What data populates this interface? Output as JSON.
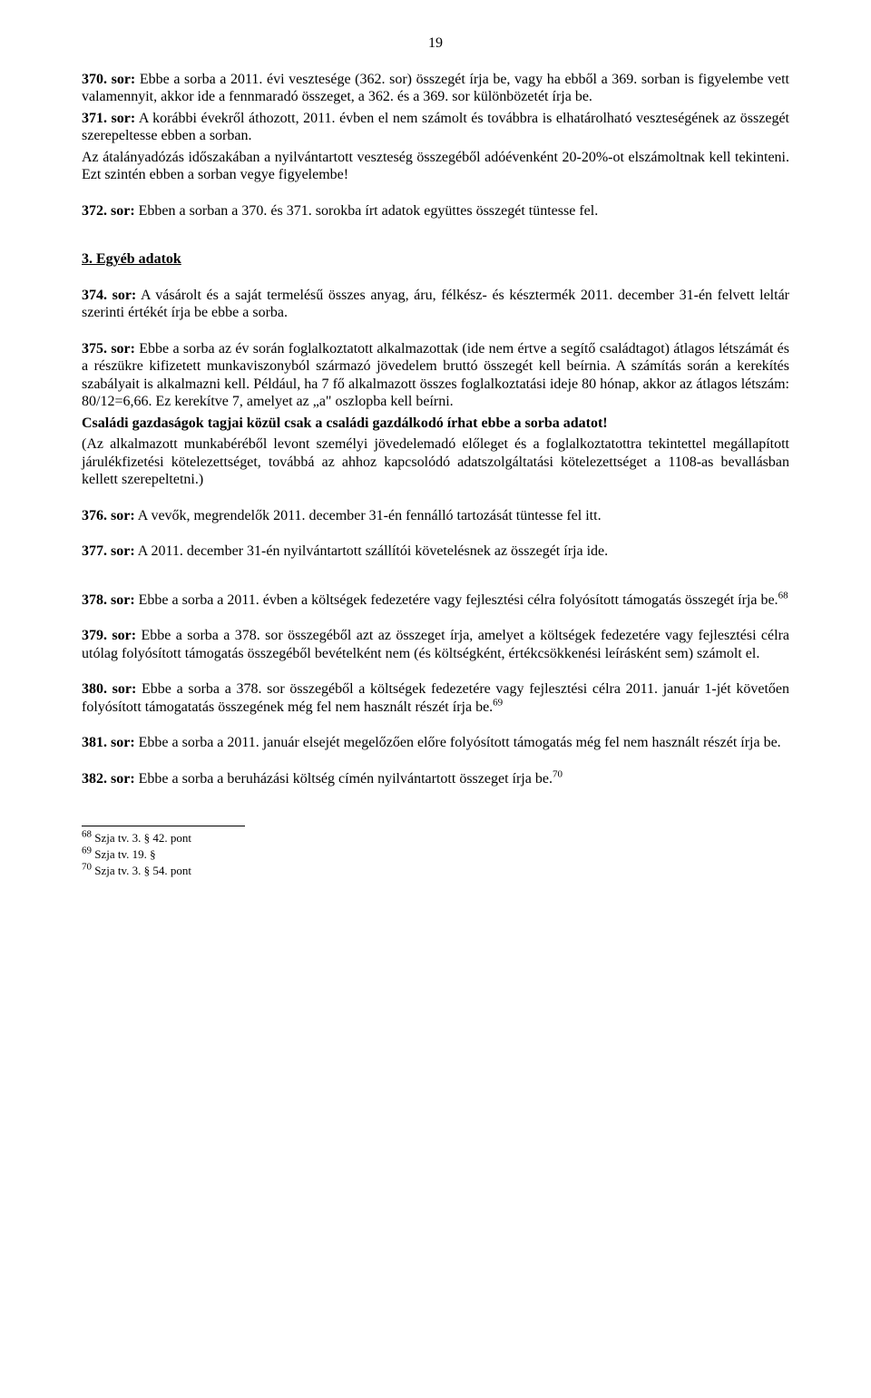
{
  "page_number": "19",
  "p370": {
    "lead": "370. sor:",
    "body": " Ebbe a sorba a 2011. évi vesztesége (362. sor) összegét írja be, vagy ha ebből a 369. sorban is figyelembe vett valamennyit, akkor ide a fennmaradó összeget, a 362. és a 369. sor különbözetét írja be.",
    "p2": {
      "lead": "371. sor:",
      "body": " A korábbi évekről áthozott, 2011. évben el nem számolt és továbbra is elhatárolható veszteségének az összegét szerepeltesse ebben a sorban."
    },
    "p3": "Az átalányadózás időszakában a nyilvántartott veszteség összegéből adóévenként 20-20%-ot elszámoltnak kell tekinteni. Ezt szintén ebben a sorban vegye figyelembe!"
  },
  "p372": {
    "lead": "372. sor:",
    "body": " Ebben a sorban a 370. és 371. sorokba írt adatok együttes összegét tüntesse fel."
  },
  "section3": "3. Egyéb adatok",
  "p374": {
    "lead": "374. sor:",
    "body": " A vásárolt és a saját termelésű összes anyag, áru, félkész- és késztermék 2011. december 31-én felvett leltár szerinti értékét írja be ebbe a sorba."
  },
  "p375": {
    "lead": "375. sor:",
    "body": " Ebbe a sorba az év során foglalkoztatott alkalmazottak (ide nem értve a segítő családtagot) átlagos létszámát és a részükre kifizetett munkaviszonyból származó jövedelem bruttó összegét kell beírnia. A számítás során a kerekítés szabályait is alkalmazni kell. Például, ha 7 fő alkalmazott összes foglalkoztatási ideje 80 hónap, akkor az átlagos létszám: 80/12=6,66. Ez kerekítve 7, amelyet az „a\" oszlopba kell beírni.",
    "bold_line": "Családi gazdaságok tagjai közül csak a családi gazdálkodó írhat ebbe a sorba adatot!",
    "body2": "(Az alkalmazott munkabéréből levont személyi jövedelemadó előleget és a foglalkoztatottra tekintettel megállapított járulékfizetési kötelezettséget, továbbá az ahhoz kapcsolódó adatszolgáltatási kötelezettséget a 1108-as bevallásban kellett szerepeltetni.)"
  },
  "p376": {
    "lead": "376. sor:",
    "body": " A vevők, megrendelők 2011. december 31-én fennálló tartozását tüntesse fel itt."
  },
  "p377": {
    "lead": "377. sor:",
    "body": " A 2011. december 31-én nyilvántartott szállítói követelésnek az összegét írja ide."
  },
  "p378": {
    "lead": "378. sor:",
    "body": " Ebbe a sorba a 2011. évben a költségek fedezetére vagy fejlesztési célra folyósított támogatás összegét írja be.",
    "note": "68"
  },
  "p379": {
    "lead": "379. sor:",
    "body": " Ebbe a sorba a 378. sor összegéből azt az összeget írja, amelyet a költségek fedezetére vagy fejlesztési célra utólag folyósított támogatás összegéből bevételként nem (és költségként, értékcsökkenési leírásként sem) számolt el."
  },
  "p380": {
    "lead": "380. sor:",
    "body": " Ebbe a sorba a 378. sor összegéből a költségek fedezetére vagy fejlesztési célra 2011. január 1-jét követően folyósított támogatatás összegének még fel nem használt részét írja be.",
    "note": "69"
  },
  "p381": {
    "lead": "381. sor:",
    "body": " Ebbe a sorba a 2011. január elsejét megelőzően előre folyósított támogatás még fel nem használt részét írja be."
  },
  "p382": {
    "lead": "382. sor:",
    "body": " Ebbe a sorba a beruházási költség címén nyilvántartott összeget írja be.",
    "note": "70"
  },
  "footnotes": {
    "f68": {
      "num": "68",
      "text": " Szja tv. 3. § 42. pont"
    },
    "f69": {
      "num": "69",
      "text": " Szja tv. 19. §"
    },
    "f70": {
      "num": "70",
      "text": " Szja tv. 3. § 54. pont"
    }
  }
}
